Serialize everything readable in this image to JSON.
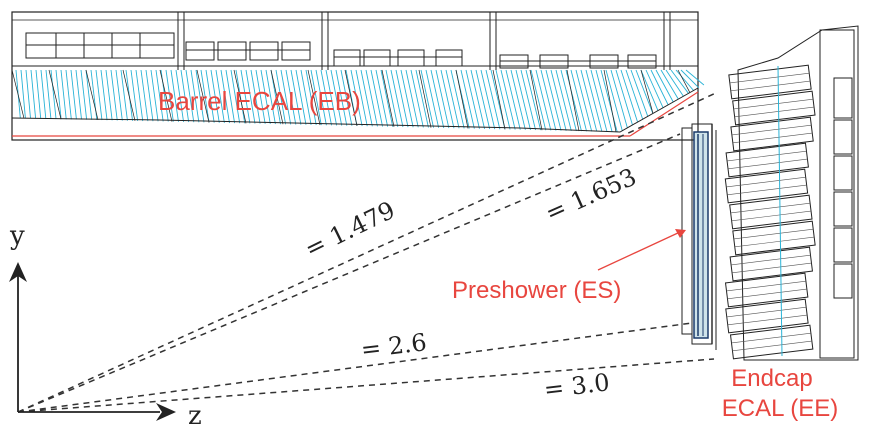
{
  "labels": {
    "barrel": "Barrel ECAL (EB)",
    "preshower": "Preshower (ES)",
    "endcap_line1": "Endcap",
    "endcap_line2": "ECAL (EE)",
    "axis_y": "y",
    "axis_z": "z"
  },
  "eta_lines": [
    {
      "label": "= 1.479"
    },
    {
      "label": "= 1.653"
    },
    {
      "label": "= 2.6"
    },
    {
      "label": "= 3.0"
    }
  ],
  "colors": {
    "label_red": "#e8463f",
    "crystal_cyan": "#2ab3d6",
    "outline": "#222222",
    "dashed": "#333333"
  }
}
